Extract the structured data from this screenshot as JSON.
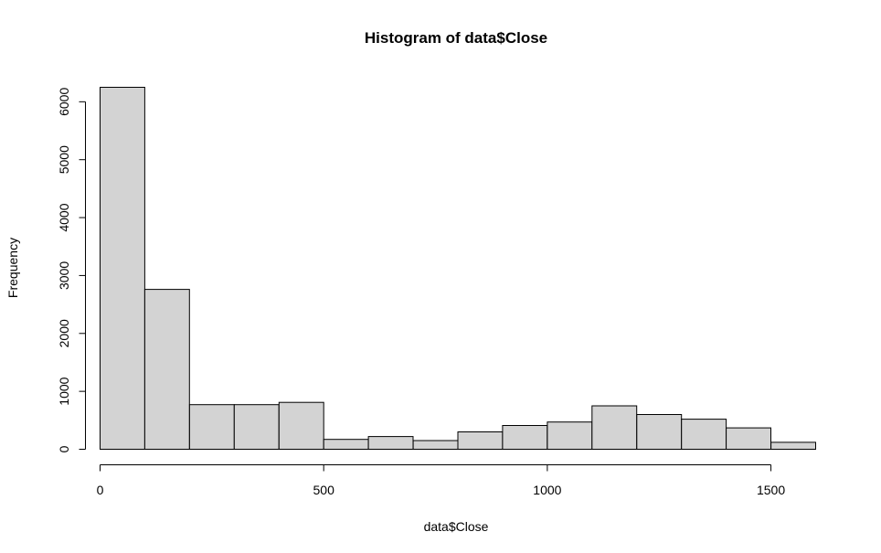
{
  "chart_data": {
    "type": "bar",
    "title": "Histogram of data$Close",
    "xlabel": "data$Close",
    "ylabel": "Frequency",
    "bin_edges": [
      0,
      100,
      200,
      300,
      400,
      500,
      600,
      700,
      800,
      900,
      1000,
      1100,
      1200,
      1300,
      1400,
      1500,
      1600
    ],
    "values": [
      6250,
      2760,
      770,
      770,
      810,
      170,
      220,
      150,
      300,
      410,
      470,
      750,
      600,
      520,
      370,
      120
    ],
    "x_ticks": [
      0,
      500,
      1000,
      1500
    ],
    "y_ticks": [
      0,
      1000,
      2000,
      3000,
      4000,
      5000,
      6000
    ],
    "xlim": [
      0,
      1600
    ],
    "ylim": [
      0,
      6250
    ],
    "bar_color": "#d3d3d3",
    "grid": false
  }
}
